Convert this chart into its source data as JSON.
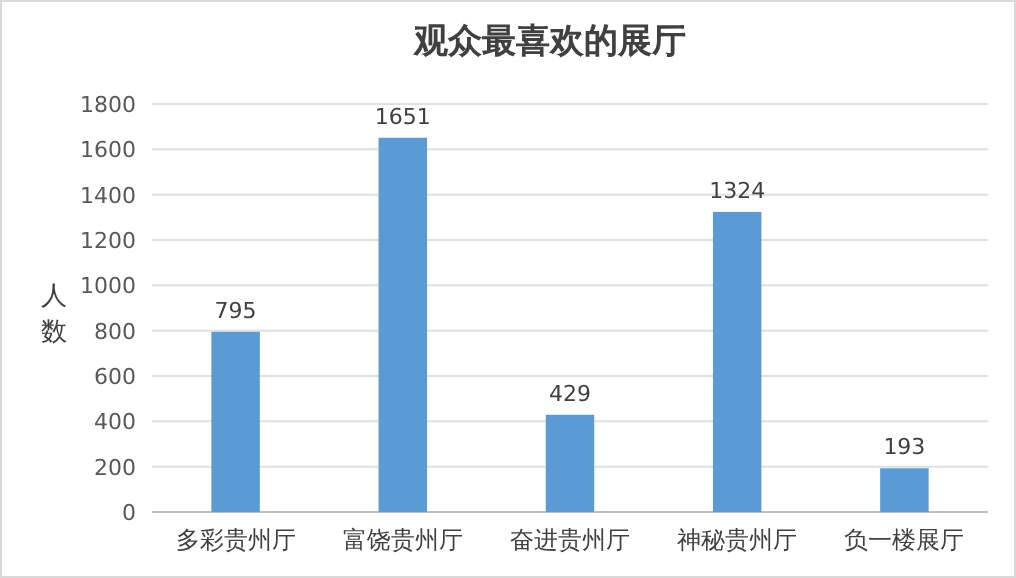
{
  "chart_data": {
    "type": "bar",
    "title": "观众最喜欢的展厅",
    "ylabel": "人数",
    "categories": [
      "多彩贵州厅",
      "富饶贵州厅",
      "奋进贵州厅",
      "神秘贵州厅",
      "负一楼展厅"
    ],
    "values": [
      795,
      1651,
      429,
      1324,
      193
    ],
    "color": "#5b9bd5",
    "ylim": [
      0,
      1800
    ],
    "yticks": [
      0,
      200,
      400,
      600,
      800,
      1000,
      1200,
      1400,
      1600,
      1800
    ],
    "grid": "y",
    "data_labels": true
  }
}
